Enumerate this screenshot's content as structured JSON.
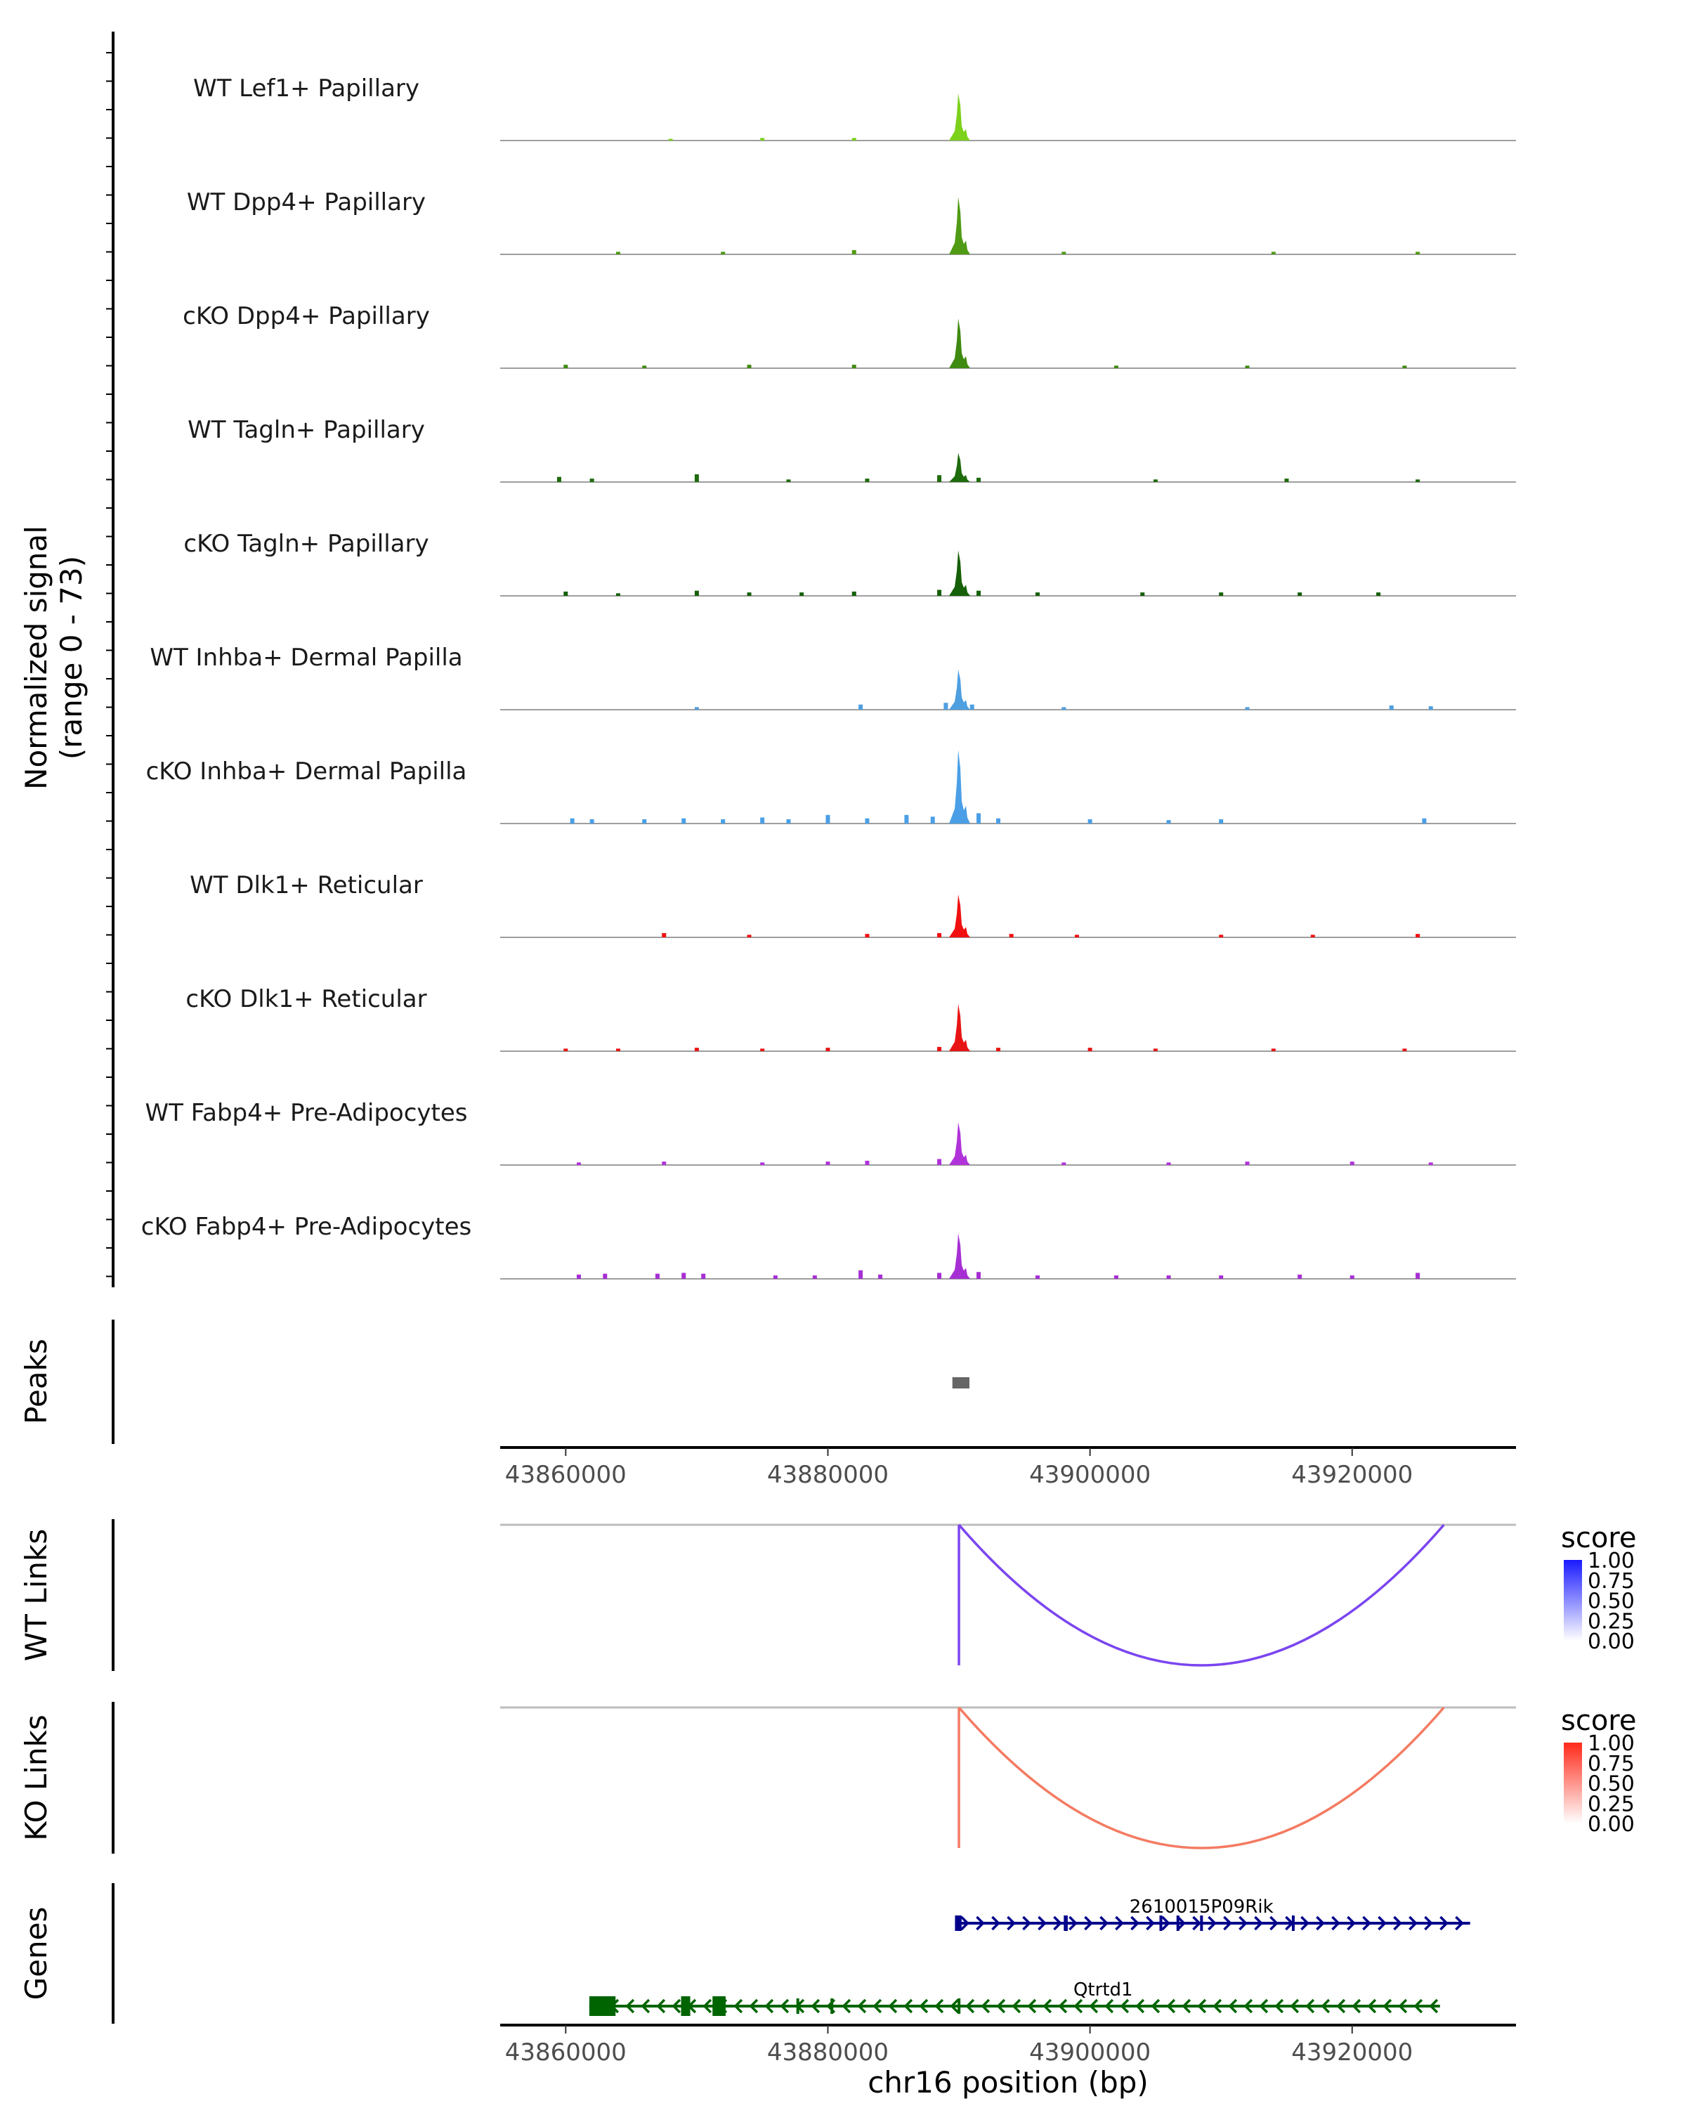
{
  "chart_data": {
    "type": "genome-browser-coverage",
    "region": {
      "chromosome": "chr16",
      "start": 43855000,
      "end": 43932500
    },
    "x_axis": {
      "label": "chr16 position (bp)",
      "ticks": [
        43860000,
        43880000,
        43900000,
        43920000
      ],
      "tick_labels": [
        "43860000",
        "43880000",
        "43900000",
        "43920000"
      ]
    },
    "coverage": {
      "ylabel_line1": "Normalized signal",
      "ylabel_line2": "(range 0 - 73)",
      "ylim": [
        0,
        73
      ],
      "tracks": [
        {
          "label": "WT Lef1+ Papillary",
          "color": "#7cd11a",
          "peak": 0.55,
          "noise": [
            [
              43868000,
              0.02
            ],
            [
              43875000,
              0.03
            ],
            [
              43882000,
              0.03
            ]
          ]
        },
        {
          "label": "WT Dpp4+ Papillary",
          "color": "#4f9b14",
          "peak": 0.67,
          "noise": [
            [
              43864000,
              0.03
            ],
            [
              43872000,
              0.03
            ],
            [
              43882000,
              0.05
            ],
            [
              43898000,
              0.03
            ],
            [
              43914000,
              0.03
            ],
            [
              43925000,
              0.03
            ]
          ]
        },
        {
          "label": "cKO Dpp4+ Papillary",
          "color": "#3f8a10",
          "peak": 0.58,
          "noise": [
            [
              43860000,
              0.04
            ],
            [
              43866000,
              0.03
            ],
            [
              43874000,
              0.04
            ],
            [
              43882000,
              0.04
            ],
            [
              43890000,
              0.05
            ],
            [
              43902000,
              0.03
            ],
            [
              43912000,
              0.03
            ],
            [
              43924000,
              0.03
            ]
          ]
        },
        {
          "label": "WT Tagln+ Papillary",
          "color": "#1e6b0c",
          "peak": 0.34,
          "noise": [
            [
              43859500,
              0.06
            ],
            [
              43862000,
              0.04
            ],
            [
              43870000,
              0.09
            ],
            [
              43877000,
              0.03
            ],
            [
              43883000,
              0.04
            ],
            [
              43888500,
              0.08
            ],
            [
              43891500,
              0.05
            ],
            [
              43905000,
              0.03
            ],
            [
              43915000,
              0.04
            ],
            [
              43925000,
              0.03
            ]
          ]
        },
        {
          "label": "cKO Tagln+ Papillary",
          "color": "#156008",
          "peak": 0.53,
          "noise": [
            [
              43860000,
              0.05
            ],
            [
              43864000,
              0.03
            ],
            [
              43870000,
              0.06
            ],
            [
              43874000,
              0.04
            ],
            [
              43878000,
              0.04
            ],
            [
              43882000,
              0.05
            ],
            [
              43888500,
              0.07
            ],
            [
              43891500,
              0.06
            ],
            [
              43896000,
              0.04
            ],
            [
              43904000,
              0.04
            ],
            [
              43910000,
              0.04
            ],
            [
              43916000,
              0.04
            ],
            [
              43922000,
              0.04
            ]
          ]
        },
        {
          "label": "WT Inhba+ Dermal Papilla",
          "color": "#4e9fe0",
          "peak": 0.47,
          "noise": [
            [
              43870000,
              0.03
            ],
            [
              43882500,
              0.06
            ],
            [
              43889000,
              0.08
            ],
            [
              43891000,
              0.06
            ],
            [
              43898000,
              0.03
            ],
            [
              43912000,
              0.03
            ],
            [
              43923000,
              0.05
            ],
            [
              43926000,
              0.04
            ]
          ]
        },
        {
          "label": "cKO Inhba+ Dermal Papilla",
          "color": "#4a9fe6",
          "peak": 0.86,
          "noise": [
            [
              43860500,
              0.06
            ],
            [
              43862000,
              0.05
            ],
            [
              43866000,
              0.05
            ],
            [
              43869000,
              0.06
            ],
            [
              43872000,
              0.05
            ],
            [
              43875000,
              0.07
            ],
            [
              43877000,
              0.05
            ],
            [
              43880000,
              0.1
            ],
            [
              43883000,
              0.06
            ],
            [
              43886000,
              0.1
            ],
            [
              43888000,
              0.08
            ],
            [
              43891500,
              0.12
            ],
            [
              43893000,
              0.06
            ],
            [
              43900000,
              0.05
            ],
            [
              43906000,
              0.04
            ],
            [
              43910000,
              0.05
            ],
            [
              43925500,
              0.06
            ]
          ]
        },
        {
          "label": "WT Dlk1+ Reticular",
          "color": "#f01010",
          "peak": 0.5,
          "noise": [
            [
              43867500,
              0.05
            ],
            [
              43874000,
              0.03
            ],
            [
              43883000,
              0.04
            ],
            [
              43888500,
              0.05
            ],
            [
              43894000,
              0.04
            ],
            [
              43899000,
              0.03
            ],
            [
              43910000,
              0.03
            ],
            [
              43917000,
              0.03
            ],
            [
              43925000,
              0.04
            ]
          ]
        },
        {
          "label": "cKO Dlk1+ Reticular",
          "color": "#e81414",
          "peak": 0.55,
          "noise": [
            [
              43860000,
              0.03
            ],
            [
              43864000,
              0.03
            ],
            [
              43870000,
              0.04
            ],
            [
              43875000,
              0.03
            ],
            [
              43880000,
              0.04
            ],
            [
              43888500,
              0.05
            ],
            [
              43893000,
              0.04
            ],
            [
              43900000,
              0.04
            ],
            [
              43905000,
              0.03
            ],
            [
              43914000,
              0.03
            ],
            [
              43924000,
              0.03
            ]
          ]
        },
        {
          "label": "WT Fabp4+ Pre-Adipocytes",
          "color": "#b033d9",
          "peak": 0.5,
          "noise": [
            [
              43861000,
              0.03
            ],
            [
              43867500,
              0.04
            ],
            [
              43875000,
              0.03
            ],
            [
              43880000,
              0.04
            ],
            [
              43883000,
              0.05
            ],
            [
              43888500,
              0.07
            ],
            [
              43898000,
              0.03
            ],
            [
              43906000,
              0.03
            ],
            [
              43912000,
              0.04
            ],
            [
              43920000,
              0.04
            ],
            [
              43926000,
              0.03
            ]
          ]
        },
        {
          "label": "cKO Fabp4+ Pre-Adipocytes",
          "color": "#a62fd4",
          "peak": 0.53,
          "noise": [
            [
              43861000,
              0.05
            ],
            [
              43863000,
              0.06
            ],
            [
              43867000,
              0.06
            ],
            [
              43869000,
              0.07
            ],
            [
              43870500,
              0.06
            ],
            [
              43876000,
              0.04
            ],
            [
              43879000,
              0.04
            ],
            [
              43882500,
              0.1
            ],
            [
              43884000,
              0.05
            ],
            [
              43888500,
              0.07
            ],
            [
              43891500,
              0.08
            ],
            [
              43896000,
              0.04
            ],
            [
              43902000,
              0.04
            ],
            [
              43906000,
              0.04
            ],
            [
              43910000,
              0.04
            ],
            [
              43916000,
              0.05
            ],
            [
              43920000,
              0.04
            ],
            [
              43925000,
              0.07
            ]
          ]
        }
      ],
      "peak_center": 43890000
    },
    "peaks": {
      "ylabel": "Peaks",
      "regions": [
        [
          43889500,
          43890800
        ]
      ],
      "color": "#666666"
    },
    "links": [
      {
        "ylabel": "WT Links",
        "from": 43890000,
        "to": 43927000,
        "color": "#7b45f0",
        "score": 0.75,
        "legend_title": "score",
        "legend_colors": [
          "#ffffff",
          "#1a1aff"
        ],
        "legend_ticks": [
          "1.00",
          "0.75",
          "0.50",
          "0.25",
          "0.00"
        ]
      },
      {
        "ylabel": "KO Links",
        "from": 43890000,
        "to": 43927000,
        "color": "#f47b62",
        "score": 0.6,
        "legend_title": "score",
        "legend_colors": [
          "#ffffff",
          "#ff2a1a"
        ],
        "legend_ticks": [
          "1.00",
          "0.75",
          "0.50",
          "0.25",
          "0.00"
        ]
      }
    ],
    "genes": {
      "ylabel": "Genes",
      "items": [
        {
          "name": "2610015P09Rik",
          "start": 43889700,
          "end": 43929000,
          "strand": "+",
          "color": "#00008b",
          "exons": [
            [
              43889700,
              43890200
            ],
            [
              43898000,
              43898300
            ],
            [
              43905300,
              43905500
            ],
            [
              43906600,
              43906800
            ],
            [
              43908400,
              43908600
            ],
            [
              43915400,
              43915600
            ]
          ]
        },
        {
          "name": "Qtrtd1",
          "start": 43861800,
          "end": 43926700,
          "strand": "-",
          "color": "#006400",
          "exons": [
            [
              43861800,
              43863800
            ],
            [
              43868800,
              43869500
            ],
            [
              43871200,
              43872200
            ],
            [
              43877600,
              43877800
            ],
            [
              43880200,
              43880400
            ],
            [
              43889900,
              43890100
            ]
          ]
        }
      ]
    }
  }
}
